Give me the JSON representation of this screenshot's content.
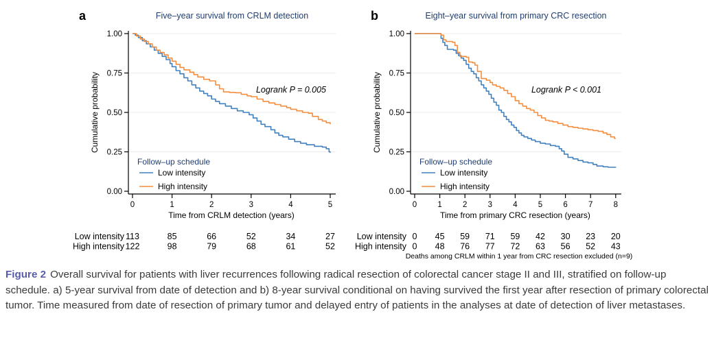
{
  "figure": {
    "caption": {
      "label": "Figure 2",
      "text": "Overall survival for patients with liver recurrences following radical resection of colorectal cancer stage II and III, stratified on follow-up schedule. a) 5-year survival from date of detection and b) 8-year survival conditional on having survived the first year after resection of primary colorectal tumor. Time measured from date of resection of primary tumor and delayed entry of patients in the analyses at date of detection of liver metastases."
    },
    "colors": {
      "low_intensity": "#4080BF",
      "high_intensity": "#F68D3C",
      "title_navy": "#1f3d70",
      "caption_label": "#585ca8",
      "gridline": "#ebebee",
      "axis": "#000000"
    },
    "panels": [
      {
        "letter": "a",
        "title": "Five–year survival from CRLM detection",
        "ylabel": "Cumulative probability",
        "xlabel": "Time from CRLM detection (years)",
        "annotation": "Logrank P = 0.005",
        "legend_header": "Follow–up schedule",
        "legend_items": [
          "Low intensity",
          "High intensity"
        ]
      },
      {
        "letter": "b",
        "title": "Eight–year survival from primary CRC resection",
        "ylabel": "Cumulative probability",
        "xlabel": "Time from primary CRC resection (years)",
        "annotation": "Logrank P < 0.001",
        "legend_header": "Follow–up schedule",
        "legend_items": [
          "Low intensity",
          "High intensity"
        ],
        "footnote": "Deaths among CRLM within 1 year from CRC resection excluded (n=9)"
      }
    ]
  },
  "chart_data": [
    {
      "type": "line",
      "subtype": "kaplan-meier-step",
      "title": "Five–year survival from CRLM detection",
      "xlabel": "Time from CRLM detection (years)",
      "ylabel": "Cumulative probability",
      "xlim": [
        0,
        5
      ],
      "ylim": [
        0,
        1
      ],
      "xticks": [
        0,
        1,
        2,
        3,
        4,
        5
      ],
      "yticks": [
        0,
        0.25,
        0.5,
        0.75,
        1
      ],
      "grid": "horizontal",
      "legend_position": "inside-bottom-left",
      "annotation": "Logrank P = 0.005",
      "series": [
        {
          "name": "Low intensity",
          "color": "#4080BF",
          "points": [
            [
              0,
              1.0
            ],
            [
              0.07,
              0.99
            ],
            [
              0.15,
              0.975
            ],
            [
              0.25,
              0.955
            ],
            [
              0.35,
              0.935
            ],
            [
              0.45,
              0.915
            ],
            [
              0.55,
              0.895
            ],
            [
              0.65,
              0.875
            ],
            [
              0.75,
              0.855
            ],
            [
              0.85,
              0.835
            ],
            [
              0.95,
              0.81
            ],
            [
              1.0,
              0.79
            ],
            [
              1.1,
              0.765
            ],
            [
              1.2,
              0.745
            ],
            [
              1.3,
              0.72
            ],
            [
              1.4,
              0.7
            ],
            [
              1.5,
              0.675
            ],
            [
              1.6,
              0.655
            ],
            [
              1.7,
              0.635
            ],
            [
              1.8,
              0.62
            ],
            [
              1.9,
              0.605
            ],
            [
              2.0,
              0.585
            ],
            [
              2.1,
              0.57
            ],
            [
              2.2,
              0.555
            ],
            [
              2.35,
              0.54
            ],
            [
              2.5,
              0.525
            ],
            [
              2.65,
              0.51
            ],
            [
              2.8,
              0.5
            ],
            [
              2.95,
              0.485
            ],
            [
              3.05,
              0.465
            ],
            [
              3.15,
              0.445
            ],
            [
              3.25,
              0.425
            ],
            [
              3.35,
              0.41
            ],
            [
              3.5,
              0.39
            ],
            [
              3.6,
              0.37
            ],
            [
              3.7,
              0.355
            ],
            [
              3.8,
              0.345
            ],
            [
              3.95,
              0.33
            ],
            [
              4.1,
              0.315
            ],
            [
              4.25,
              0.305
            ],
            [
              4.4,
              0.295
            ],
            [
              4.6,
              0.285
            ],
            [
              4.8,
              0.28
            ],
            [
              4.9,
              0.27
            ],
            [
              4.97,
              0.25
            ],
            [
              5.0,
              0.245
            ]
          ]
        },
        {
          "name": "High intensity",
          "color": "#F68D3C",
          "points": [
            [
              0,
              1.0
            ],
            [
              0.1,
              0.985
            ],
            [
              0.2,
              0.965
            ],
            [
              0.3,
              0.95
            ],
            [
              0.4,
              0.935
            ],
            [
              0.5,
              0.915
            ],
            [
              0.6,
              0.895
            ],
            [
              0.7,
              0.88
            ],
            [
              0.8,
              0.865
            ],
            [
              0.9,
              0.845
            ],
            [
              1.0,
              0.825
            ],
            [
              1.1,
              0.805
            ],
            [
              1.2,
              0.785
            ],
            [
              1.3,
              0.77
            ],
            [
              1.45,
              0.755
            ],
            [
              1.55,
              0.74
            ],
            [
              1.65,
              0.725
            ],
            [
              1.8,
              0.71
            ],
            [
              1.95,
              0.7
            ],
            [
              2.1,
              0.675
            ],
            [
              2.2,
              0.65
            ],
            [
              2.3,
              0.63
            ],
            [
              2.45,
              0.627
            ],
            [
              2.6,
              0.625
            ],
            [
              2.75,
              0.615
            ],
            [
              2.9,
              0.605
            ],
            [
              3.0,
              0.6
            ],
            [
              3.15,
              0.585
            ],
            [
              3.3,
              0.57
            ],
            [
              3.45,
              0.56
            ],
            [
              3.6,
              0.55
            ],
            [
              3.75,
              0.54
            ],
            [
              3.9,
              0.53
            ],
            [
              4.0,
              0.52
            ],
            [
              4.15,
              0.51
            ],
            [
              4.3,
              0.5
            ],
            [
              4.45,
              0.495
            ],
            [
              4.55,
              0.475
            ],
            [
              4.7,
              0.455
            ],
            [
              4.8,
              0.445
            ],
            [
              4.9,
              0.435
            ],
            [
              5.0,
              0.425
            ]
          ]
        }
      ],
      "risk_table": {
        "times": [
          0,
          1,
          2,
          3,
          4,
          5
        ],
        "rows": [
          {
            "label": "Low intensity",
            "counts": [
              113,
              85,
              66,
              52,
              34,
              27
            ]
          },
          {
            "label": "High intensity",
            "counts": [
              122,
              98,
              79,
              68,
              61,
              52
            ]
          }
        ]
      }
    },
    {
      "type": "line",
      "subtype": "kaplan-meier-step",
      "title": "Eight–year survival from primary CRC resection",
      "xlabel": "Time from primary CRC resection (years)",
      "ylabel": "Cumulative probability",
      "xlim": [
        0,
        8
      ],
      "ylim": [
        0,
        1
      ],
      "xticks": [
        0,
        1,
        2,
        3,
        4,
        5,
        6,
        7,
        8
      ],
      "yticks": [
        0,
        0.25,
        0.5,
        0.75,
        1
      ],
      "grid": "horizontal",
      "legend_position": "inside-bottom-left",
      "annotation": "Logrank P < 0.001",
      "series": [
        {
          "name": "Low intensity",
          "color": "#4080BF",
          "points": [
            [
              0,
              1.0
            ],
            [
              1.02,
              1.0
            ],
            [
              1.05,
              0.97
            ],
            [
              1.12,
              0.945
            ],
            [
              1.2,
              0.925
            ],
            [
              1.3,
              0.9
            ],
            [
              1.55,
              0.895
            ],
            [
              1.65,
              0.875
            ],
            [
              1.75,
              0.86
            ],
            [
              1.85,
              0.845
            ],
            [
              1.95,
              0.83
            ],
            [
              2.05,
              0.805
            ],
            [
              2.15,
              0.78
            ],
            [
              2.25,
              0.76
            ],
            [
              2.35,
              0.745
            ],
            [
              2.45,
              0.72
            ],
            [
              2.55,
              0.7
            ],
            [
              2.65,
              0.675
            ],
            [
              2.75,
              0.655
            ],
            [
              2.85,
              0.635
            ],
            [
              2.95,
              0.615
            ],
            [
              3.05,
              0.59
            ],
            [
              3.15,
              0.565
            ],
            [
              3.25,
              0.545
            ],
            [
              3.35,
              0.515
            ],
            [
              3.45,
              0.5
            ],
            [
              3.55,
              0.475
            ],
            [
              3.65,
              0.455
            ],
            [
              3.75,
              0.44
            ],
            [
              3.85,
              0.42
            ],
            [
              3.95,
              0.405
            ],
            [
              4.05,
              0.385
            ],
            [
              4.15,
              0.37
            ],
            [
              4.25,
              0.355
            ],
            [
              4.35,
              0.345
            ],
            [
              4.5,
              0.335
            ],
            [
              4.65,
              0.325
            ],
            [
              4.8,
              0.315
            ],
            [
              5.0,
              0.305
            ],
            [
              5.2,
              0.3
            ],
            [
              5.4,
              0.29
            ],
            [
              5.6,
              0.285
            ],
            [
              5.75,
              0.27
            ],
            [
              5.85,
              0.255
            ],
            [
              5.95,
              0.235
            ],
            [
              6.1,
              0.215
            ],
            [
              6.3,
              0.205
            ],
            [
              6.5,
              0.195
            ],
            [
              6.7,
              0.185
            ],
            [
              6.9,
              0.18
            ],
            [
              7.1,
              0.17
            ],
            [
              7.25,
              0.16
            ],
            [
              7.5,
              0.155
            ],
            [
              7.7,
              0.152
            ],
            [
              8.0,
              0.15
            ]
          ]
        },
        {
          "name": "High intensity",
          "color": "#F68D3C",
          "points": [
            [
              0,
              1.0
            ],
            [
              1.0,
              1.0
            ],
            [
              1.05,
              0.99
            ],
            [
              1.15,
              0.96
            ],
            [
              1.25,
              0.95
            ],
            [
              1.5,
              0.945
            ],
            [
              1.6,
              0.925
            ],
            [
              1.7,
              0.88
            ],
            [
              1.8,
              0.855
            ],
            [
              2.05,
              0.85
            ],
            [
              2.15,
              0.82
            ],
            [
              2.3,
              0.815
            ],
            [
              2.4,
              0.8
            ],
            [
              2.5,
              0.76
            ],
            [
              2.65,
              0.715
            ],
            [
              2.85,
              0.705
            ],
            [
              3.0,
              0.69
            ],
            [
              3.1,
              0.675
            ],
            [
              3.25,
              0.665
            ],
            [
              3.4,
              0.655
            ],
            [
              3.55,
              0.64
            ],
            [
              3.7,
              0.62
            ],
            [
              3.85,
              0.6
            ],
            [
              4.0,
              0.575
            ],
            [
              4.15,
              0.555
            ],
            [
              4.3,
              0.54
            ],
            [
              4.45,
              0.525
            ],
            [
              4.6,
              0.515
            ],
            [
              4.75,
              0.5
            ],
            [
              4.9,
              0.48
            ],
            [
              5.05,
              0.465
            ],
            [
              5.2,
              0.45
            ],
            [
              5.35,
              0.445
            ],
            [
              5.5,
              0.44
            ],
            [
              5.7,
              0.43
            ],
            [
              5.9,
              0.42
            ],
            [
              6.1,
              0.41
            ],
            [
              6.3,
              0.405
            ],
            [
              6.5,
              0.4
            ],
            [
              6.7,
              0.395
            ],
            [
              6.9,
              0.39
            ],
            [
              7.1,
              0.385
            ],
            [
              7.3,
              0.38
            ],
            [
              7.5,
              0.37
            ],
            [
              7.65,
              0.36
            ],
            [
              7.8,
              0.345
            ],
            [
              7.95,
              0.335
            ],
            [
              8.0,
              0.335
            ]
          ]
        }
      ],
      "risk_table": {
        "times": [
          0,
          1,
          2,
          3,
          4,
          5,
          6,
          7,
          8
        ],
        "rows": [
          {
            "label": "Low intensity",
            "counts": [
              0,
              45,
              59,
              71,
              59,
              42,
              30,
              23,
              20
            ]
          },
          {
            "label": "High intensity",
            "counts": [
              0,
              48,
              76,
              77,
              72,
              63,
              56,
              52,
              43
            ]
          }
        ]
      }
    }
  ]
}
